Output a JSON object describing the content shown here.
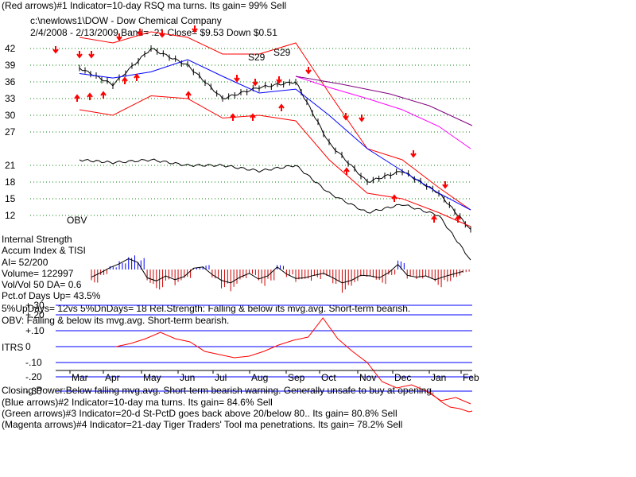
{
  "header": {
    "line1": "(Red arrows)#1 Indicator=10-day RSQ ma turns. Its gain= 99% Sell",
    "line2": "c:\\newlows1\\DOW  -  Dow Chemical Company",
    "line3": "2/4/2008 - 2/13/2009  Band= .21   Close= $9.53   Down $0.51"
  },
  "price_labels": [
    "42",
    "39",
    "36",
    "33",
    "30",
    "27",
    "21",
    "18",
    "15",
    "12"
  ],
  "obv_label": "OBV",
  "s29_labels": [
    "S29",
    "S29"
  ],
  "panel_labels": {
    "internal_strength": "Internal Strength",
    "accum_index": "Accum Index & TISI",
    "ai": "AI= 52/200",
    "volume": "Volume= 122997",
    "volvol": "Vol/Vol 50 DA= 0.6",
    "pct_days_up": "Pct.of Days Up= 43.5%"
  },
  "status_lines": {
    "updays": "5%UpDays= 12vs 5%DnDays= 18   Rel.Strength: Falling & below its mvg.avg. Short-term bearish.",
    "obv": "OBV: Falling & below its mvg.avg. Short-term bearish."
  },
  "itrs": {
    "title": "ITRS",
    "ticks": [
      "+.30",
      "+.20",
      "+.10",
      "0",
      "-.10",
      "-.20",
      "-.30"
    ]
  },
  "months": [
    "Mar",
    "Apr",
    "May",
    "Jun",
    "Jul",
    "Aug",
    "Sep",
    "Oct",
    "Nov",
    "Dec",
    "Jan",
    "Feb"
  ],
  "footer": {
    "closing_power": "Closing Power:Below falling mvg.avg. Short-term bearish warning. Generally unsafe to buy at opening.",
    "blue": "(Blue arrows)#2 Indicator=10-day ma turns. Its gain= 84.6% Sell",
    "green": "(Green arrows)#3 Indicator=20-d St-PctD goes back above 20/below 80.. Its gain= 80.8% Sell",
    "magenta": "(Magenta arrows)#4 Indicator=21-day Tiger Traders' Tool ma penetrations. Its gain= 78.2% Sell"
  },
  "colors": {
    "price": "#000000",
    "band": "#ff0000",
    "ma_blue": "#0000ff",
    "ma_magenta": "#ff00ff",
    "ma_purple": "#800080",
    "grid_dots": "#008000",
    "accum_pos": "#0000ff",
    "accum_neg": "#cc0000",
    "itrs_line": "#ff0000",
    "itrs_grid": "#0000ff"
  },
  "chart_data": {
    "type": "line",
    "title": "c:\\newlows1\\DOW  -  Dow Chemical Company",
    "period": "2/4/2008 - 2/13/2009",
    "x": [
      "Mar",
      "Apr",
      "May",
      "Jun",
      "Jul",
      "Aug",
      "Sep",
      "Oct",
      "Nov",
      "Dec",
      "Jan",
      "Feb"
    ],
    "y_axis_ticks": [
      42,
      39,
      36,
      33,
      30,
      27,
      21,
      18,
      15,
      12
    ],
    "series": [
      {
        "name": "price_close",
        "values": [
          38.5,
          35.5,
          42,
          39,
          33,
          35,
          36,
          25,
          18,
          20,
          16,
          9.5
        ]
      },
      {
        "name": "upper_band",
        "values": [
          44,
          43,
          45,
          44,
          41,
          41,
          43,
          34,
          24,
          22,
          17,
          13
        ]
      },
      {
        "name": "lower_band",
        "values": [
          31,
          30,
          33.5,
          33,
          29.5,
          30,
          29,
          22,
          16,
          15,
          12.5,
          10
        ]
      },
      {
        "name": "ma_blue",
        "values": [
          37.5,
          36.7,
          37.8,
          40,
          37,
          34,
          34.7,
          30,
          24,
          20,
          16,
          13
        ]
      },
      {
        "name": "ma_magenta",
        "values": [
          null,
          null,
          null,
          null,
          null,
          null,
          37,
          35,
          33,
          31,
          28,
          24
        ]
      },
      {
        "name": "obv",
        "values": [
          22,
          21.5,
          22,
          21,
          21,
          20,
          21,
          16,
          12.5,
          14,
          12,
          4
        ]
      }
    ],
    "accum_index": [
      -1.2,
      -0.5,
      0.3,
      0.9,
      1.7,
      1.1,
      -1.3,
      -1.8,
      -1.0,
      -1.6,
      -1.1,
      0.2,
      0.4,
      -0.8,
      -1.7,
      -2.1,
      -1.2,
      -0.6,
      -1.5,
      -1.0,
      0.4,
      -0.7,
      -1.4,
      -1.3,
      -0.9,
      -0.6,
      -1.3,
      -2.1,
      -1.7,
      -0.9,
      -1.0,
      -1.3,
      -0.5,
      0.8,
      -0.9,
      -1.2,
      -1.0,
      -1.6,
      -1.1,
      -0.7,
      -0.3
    ],
    "itrs_ticks": [
      "+.30",
      "+.20",
      "+.10",
      "0",
      "-.10",
      "-.20",
      "-.30"
    ],
    "itrs": [
      0.0,
      0.02,
      0.05,
      0.09,
      0.05,
      0.03,
      -0.03,
      -0.05,
      -0.07,
      -0.06,
      -0.03,
      0.01,
      0.04,
      0.06,
      0.18,
      0.05,
      -0.03,
      -0.1,
      -0.22,
      -0.26,
      -0.24,
      -0.28,
      -0.34,
      -0.32,
      -0.36
    ]
  }
}
